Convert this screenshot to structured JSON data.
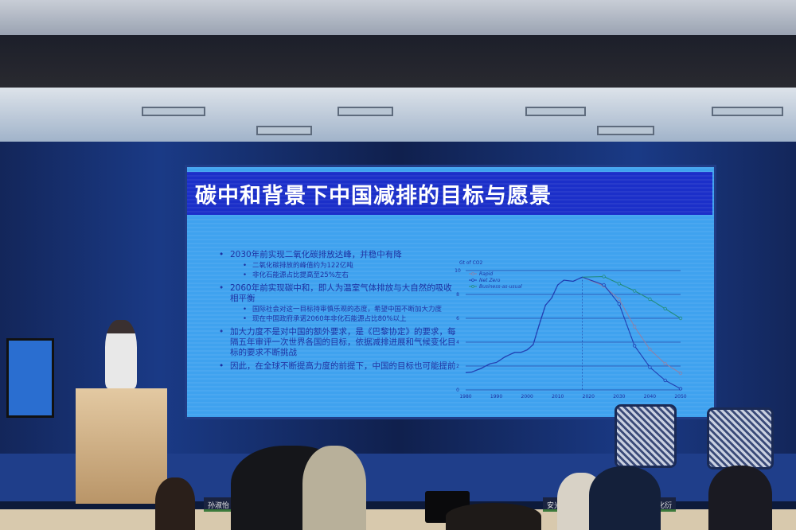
{
  "slide": {
    "title": "碳中和背景下中国减排的目标与愿景",
    "bullets": [
      {
        "text": "2030年前实现二氧化碳排放达峰，并稳中有降",
        "sub": [
          "二氧化碳排放的峰值约为122亿吨",
          "非化石能源占比提高至25%左右"
        ]
      },
      {
        "text": "2060年前实现碳中和，即人为温室气体排放与大自然的吸收相平衡",
        "sub": [
          "国际社会对这一目标持审慎乐观的态度，希望中国不断加大力度",
          "现在中国政府承诺2060年非化石能源占比80%以上"
        ]
      },
      {
        "text": "加大力度不是对中国的额外要求，是《巴黎协定》的要求，每隔五年审评一次世界各国的目标，依据减排进展和气候变化目标的要求不断挑战",
        "sub": []
      },
      {
        "text": "因此，在全球不断提高力度的前提下，中国的目标也可能提前",
        "sub": []
      }
    ]
  },
  "chart_data": {
    "type": "line",
    "ylabel": "Gt of CO2",
    "xlim": [
      1980,
      2050
    ],
    "ylim": [
      0,
      10
    ],
    "xticks": [
      1980,
      1990,
      2000,
      2010,
      2020,
      2030,
      2040,
      2050
    ],
    "yticks": [
      0,
      2,
      4,
      6,
      8,
      10
    ],
    "grid": "horizontal",
    "legend": "top-left",
    "history": {
      "x": [
        1980,
        1982,
        1985,
        1988,
        1990,
        1993,
        1996,
        1998,
        2000,
        2002,
        2004,
        2006,
        2008,
        2010,
        2012,
        2015,
        2018
      ],
      "y": [
        1.45,
        1.5,
        1.8,
        2.2,
        2.3,
        2.8,
        3.15,
        3.15,
        3.35,
        3.8,
        5.5,
        7.1,
        7.7,
        8.8,
        9.2,
        9.1,
        9.45
      ]
    },
    "reference_line_x": 2018,
    "series": [
      {
        "name": "Rapid",
        "color": "#8a7fa8",
        "x": [
          2018,
          2025,
          2030,
          2035,
          2040,
          2045,
          2050
        ],
        "y": [
          9.45,
          8.7,
          7.6,
          5.3,
          3.4,
          2.2,
          1.4
        ]
      },
      {
        "name": "Net Zero",
        "color": "#1d3bb0",
        "x": [
          2018,
          2025,
          2030,
          2035,
          2040,
          2045,
          2050
        ],
        "y": [
          9.45,
          8.8,
          7.2,
          3.7,
          1.9,
          0.8,
          0.1
        ]
      },
      {
        "name": "Business-as-usual",
        "color": "#1f8a7a",
        "x": [
          2018,
          2025,
          2030,
          2035,
          2040,
          2045,
          2050
        ],
        "y": [
          9.45,
          9.5,
          8.9,
          8.3,
          7.6,
          6.8,
          6.0
        ]
      }
    ],
    "history_color": "#1d3bb0"
  },
  "name_plates": [
    "孙淑怡",
    "安光伟",
    "魏化衍"
  ]
}
